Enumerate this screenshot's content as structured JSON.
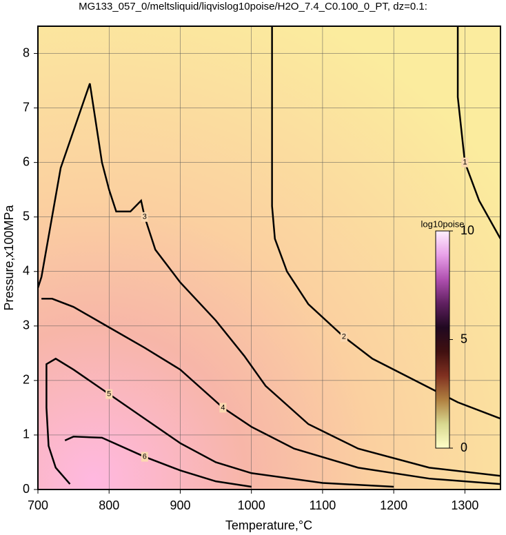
{
  "chart_data": {
    "type": "contour",
    "title": "MG133_057_0/meltsliquid/liqvislog10poise/H2O_7.4_C0.100_0_PT, dz=0.1:",
    "x_label": "Temperature,°C",
    "y_label": "Pressure,x100MPa",
    "xlim": [
      700,
      1350
    ],
    "ylim": [
      0,
      8.5
    ],
    "xticks": [
      700,
      800,
      900,
      1000,
      1100,
      1200,
      1300
    ],
    "yticks": [
      0,
      1,
      2,
      3,
      4,
      5,
      6,
      7,
      8
    ],
    "grid": true,
    "contours": [
      {
        "level": 1,
        "x": [
          1290,
          1290,
          1300,
          1320,
          1350
        ],
        "y": [
          8.5,
          7.2,
          6.0,
          5.3,
          4.6
        ]
      },
      {
        "level": 2,
        "x": [
          1029,
          1029,
          1033,
          1050,
          1080,
          1130,
          1170,
          1230,
          1290,
          1350
        ],
        "y": [
          8.5,
          5.2,
          4.6,
          4.0,
          3.4,
          2.8,
          2.4,
          2.0,
          1.6,
          1.3
        ]
      },
      {
        "level": 3,
        "x": [
          700,
          705,
          732,
          773,
          790,
          800,
          810,
          830,
          845,
          850,
          865,
          900,
          950,
          990,
          1020,
          1080,
          1150,
          1250,
          1350
        ],
        "y": [
          3.7,
          3.9,
          5.9,
          7.45,
          6.0,
          5.5,
          5.1,
          5.1,
          5.3,
          5.0,
          4.4,
          3.8,
          3.1,
          2.45,
          1.9,
          1.2,
          0.75,
          0.4,
          0.25
        ]
      },
      {
        "level": 4,
        "x": [
          705,
          720,
          750,
          790,
          850,
          900,
          960,
          1000,
          1060,
          1150,
          1250,
          1350
        ],
        "y": [
          3.5,
          3.5,
          3.35,
          3.05,
          2.6,
          2.2,
          1.5,
          1.15,
          0.75,
          0.4,
          0.2,
          0.1
        ]
      },
      {
        "level": 5,
        "x": [
          745,
          725,
          715,
          712,
          712,
          725,
          750,
          800,
          850,
          900,
          950,
          1000,
          1100,
          1200
        ],
        "y": [
          0.1,
          0.4,
          0.8,
          1.5,
          2.3,
          2.4,
          2.2,
          1.75,
          1.3,
          0.85,
          0.5,
          0.3,
          0.12,
          0.05
        ]
      },
      {
        "level": 6,
        "x": [
          738,
          750,
          790,
          850,
          900,
          950,
          1000
        ],
        "y": [
          0.9,
          0.97,
          0.95,
          0.6,
          0.35,
          0.15,
          0.05
        ]
      }
    ],
    "colorbar": {
      "label": "log10poise",
      "range": [
        0,
        10
      ],
      "ticks": [
        0,
        5,
        10
      ],
      "colors": [
        "#ffffc8",
        "#d8d890",
        "#b08040",
        "#803020",
        "#401010",
        "#200820",
        "#602060",
        "#b050b0",
        "#e8a0e8",
        "#fff0ff"
      ]
    }
  }
}
